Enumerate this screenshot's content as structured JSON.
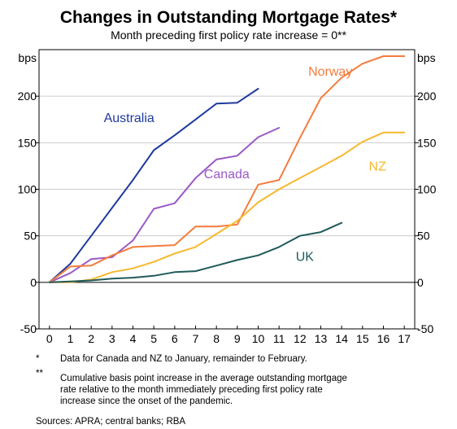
{
  "chart_data": {
    "type": "line",
    "title": "Changes in Outstanding Mortgage Rates*",
    "subtitle": "Month preceding first policy rate increase = 0**",
    "ylabel_left": "bps",
    "ylabel_right": "bps",
    "xlim": [
      -0.5,
      17.5
    ],
    "ylim": [
      -50,
      250
    ],
    "x_ticks": [
      0,
      1,
      2,
      3,
      4,
      5,
      6,
      7,
      8,
      9,
      10,
      11,
      12,
      13,
      14,
      15,
      16,
      17
    ],
    "y_ticks": [
      -50,
      0,
      50,
      100,
      150,
      200
    ],
    "grid": "horizontal",
    "series": [
      {
        "name": "Australia",
        "color": "#1f3a9e",
        "x": [
          0,
          1,
          2,
          3,
          4,
          5,
          6,
          7,
          8,
          9,
          10
        ],
        "y": [
          0,
          20,
          50,
          80,
          110,
          142,
          158,
          175,
          192,
          193,
          208
        ]
      },
      {
        "name": "Canada",
        "color": "#9b59c6",
        "x": [
          0,
          1,
          2,
          3,
          4,
          5,
          6,
          7,
          8,
          9,
          10,
          11
        ],
        "y": [
          0,
          10,
          25,
          27,
          45,
          79,
          85,
          112,
          132,
          136,
          156,
          166
        ]
      },
      {
        "name": "Norway",
        "color": "#f47c3c",
        "x": [
          0,
          1,
          2,
          3,
          4,
          5,
          6,
          7,
          8,
          9,
          10,
          11,
          12,
          13,
          14,
          15,
          16,
          17
        ],
        "y": [
          0,
          17,
          18,
          29,
          38,
          39,
          40,
          60,
          60,
          62,
          105,
          110,
          155,
          198,
          220,
          235,
          243,
          243
        ]
      },
      {
        "name": "NZ",
        "color": "#f5b82e",
        "x": [
          0,
          1,
          2,
          3,
          4,
          5,
          6,
          7,
          8,
          9,
          10,
          11,
          12,
          13,
          14,
          15,
          16,
          17
        ],
        "y": [
          0,
          0,
          3,
          11,
          15,
          22,
          31,
          38,
          52,
          66,
          86,
          100,
          112,
          124,
          136,
          151,
          161,
          161
        ]
      },
      {
        "name": "UK",
        "color": "#1f5a5a",
        "x": [
          0,
          1,
          2,
          3,
          4,
          5,
          6,
          7,
          8,
          9,
          10,
          11,
          12,
          13,
          14
        ],
        "y": [
          0,
          1,
          2,
          4,
          5,
          7,
          11,
          12,
          18,
          24,
          29,
          38,
          50,
          54,
          64
        ]
      }
    ],
    "series_labels": [
      {
        "text": "Australia",
        "series": "Australia",
        "at": [
          2.6,
          172
        ]
      },
      {
        "text": "Canada",
        "series": "Canada",
        "at": [
          7.4,
          112
        ]
      },
      {
        "text": "Norway",
        "series": "Norway",
        "at": [
          12.4,
          222
        ]
      },
      {
        "text": "NZ",
        "series": "NZ",
        "at": [
          15.3,
          120
        ]
      },
      {
        "text": "UK",
        "series": "UK",
        "at": [
          11.8,
          23
        ]
      }
    ]
  },
  "notes": [
    {
      "marker": "*",
      "text": "Data for Canada and NZ to January, remainder to February."
    },
    {
      "marker": "**",
      "text": "Cumulative basis point increase in the average outstanding mortgage rate relative to the month immediately preceding first policy rate increase since the onset of the pandemic."
    }
  ],
  "sources": "Sources: APRA; central banks; RBA"
}
